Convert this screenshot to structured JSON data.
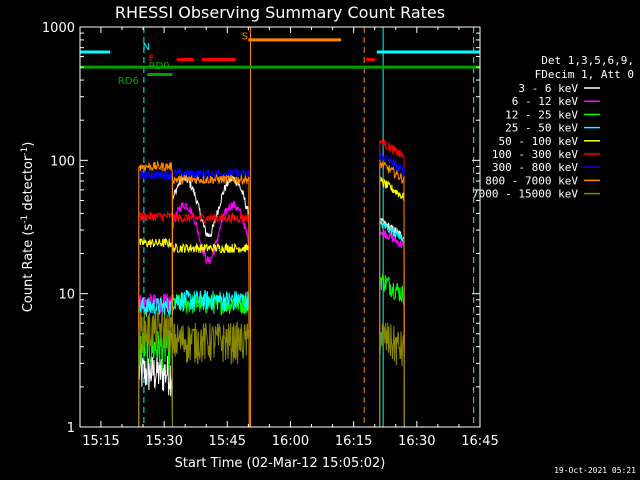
{
  "chart_data": {
    "type": "line",
    "title": "RHESSI Observing Summary Count Rates",
    "xlabel": "Start Time (02-Mar-12 15:05:02)",
    "ylabel": "Count Rate (s",
    "ylabel_sup1": "-1",
    "ylabel_mid": " detector",
    "ylabel_sup2": "-1",
    "ylabel_end": ")",
    "yscale": "log",
    "ylim": [
      1,
      1000
    ],
    "xlim_min": [
      5.03,
      100
    ],
    "x_ticks": [
      {
        "t": 10,
        "label": "15:15"
      },
      {
        "t": 25,
        "label": "15:30"
      },
      {
        "t": 40,
        "label": "15:45"
      },
      {
        "t": 55,
        "label": "16:00"
      },
      {
        "t": 70,
        "label": "16:15"
      },
      {
        "t": 85,
        "label": "16:30"
      },
      {
        "t": 100,
        "label": "16:45"
      }
    ],
    "y_ticks": [
      {
        "v": 1,
        "label": "1"
      },
      {
        "v": 10,
        "label": "10"
      },
      {
        "v": 100,
        "label": "100"
      },
      {
        "v": 1000,
        "label": "1000"
      }
    ],
    "legend_header": [
      "Det 1,3,5,6,9,",
      "FDecim 1, Att 0"
    ],
    "series": [
      {
        "name": "3 - 6 keV",
        "color": "#ffffff",
        "s1": 2.6,
        "s2": 50,
        "s3": 35
      },
      {
        "name": "6 - 12 keV",
        "color": "#ff00ff",
        "s1": 8.5,
        "s2": 32,
        "s3": 30
      },
      {
        "name": "12 - 25 keV",
        "color": "#00ff00",
        "s1": 4.0,
        "s2": 8.5,
        "s3": 13
      },
      {
        "name": "25 - 50 keV",
        "color": "#00ffff",
        "s1": 8.0,
        "s2": 9.0,
        "s3": 34
      },
      {
        "name": "50 - 100 keV",
        "color": "#ffff00",
        "s1": 24,
        "s2": 22,
        "s3": 70
      },
      {
        "name": "100 - 300 keV",
        "color": "#ff0000",
        "s1": 38,
        "s2": 37,
        "s3": 140
      },
      {
        "name": "300 - 800 keV",
        "color": "#0000ff",
        "s1": 78,
        "s2": 80,
        "s3": 110
      },
      {
        "name": "800 - 7000 keV",
        "color": "#ff8800",
        "s1": 90,
        "s2": 72,
        "s3": 95
      },
      {
        "name": "7000 - 15000 keV",
        "color": "#888800",
        "s1": 5.5,
        "s2": 4.5,
        "s3": 5.0
      }
    ],
    "flags": [
      {
        "name": "N",
        "color": "#00ffff",
        "level": 650,
        "segments": [
          [
            5.03,
            12.2
          ],
          [
            25,
            25
          ],
          [
            75.5,
            100
          ]
        ]
      },
      {
        "name": "F",
        "color": "#ff0000",
        "level": 570,
        "segments": [
          [
            28,
            32
          ],
          [
            34,
            42
          ],
          [
            73,
            75
          ]
        ]
      },
      {
        "name": "S",
        "color": "#ff8800",
        "level": 800,
        "segments": [
          [
            45,
            67
          ]
        ]
      },
      {
        "name": "RD0",
        "color": "#00a000",
        "level": 500,
        "segments": [
          [
            5.03,
            100
          ]
        ]
      },
      {
        "name": "RD6",
        "color": "#00a000",
        "level": 440,
        "segments": [
          [
            21,
            27
          ]
        ]
      }
    ],
    "vlines": [
      {
        "t": 5.03,
        "color": "#00ffff",
        "dashed": false
      },
      {
        "t": 20.2,
        "color": "#00ffff",
        "dashed": true
      },
      {
        "t": 45.5,
        "color": "#ff8800",
        "dashed": false
      },
      {
        "t": 72.5,
        "color": "#ff8800",
        "dashed": true
      },
      {
        "t": 77.0,
        "color": "#00ffff",
        "dashed": false
      },
      {
        "t": 98.5,
        "color": "#00ffff",
        "dashed": true
      }
    ],
    "timestamp": "19-Oct-2021 05:21"
  }
}
